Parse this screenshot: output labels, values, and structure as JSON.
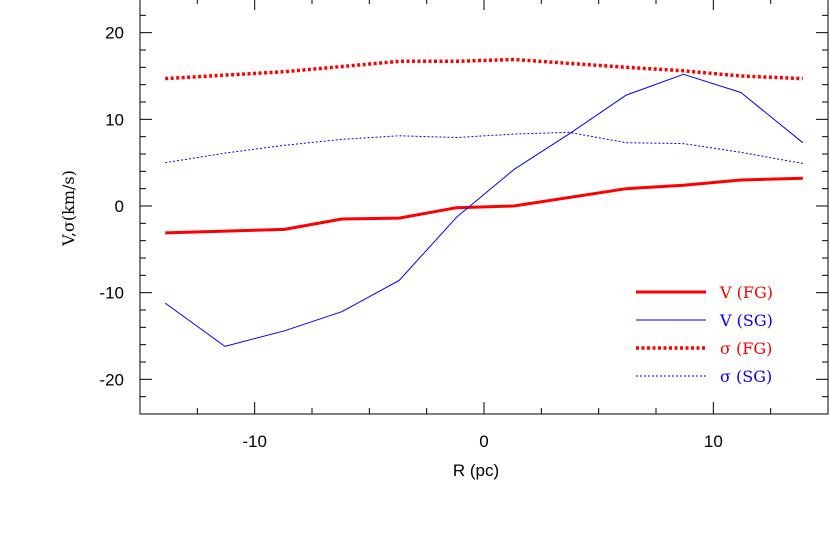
{
  "chart_data": {
    "type": "line",
    "xlabel": "R (pc)",
    "ylabel": "V,σ(km/s)",
    "xlim": [
      -15,
      15
    ],
    "ylim": [
      -24,
      24
    ],
    "x_ticks": [
      -10,
      0,
      10
    ],
    "y_ticks": [
      -20,
      -10,
      0,
      10,
      20
    ],
    "x_tick_labels": [
      "-10",
      "0",
      "10"
    ],
    "y_tick_labels": [
      "-20",
      "-10",
      "0",
      "10",
      "20"
    ],
    "grid": false,
    "legend_position": "bottom-right",
    "series": [
      {
        "name": "V (FG)",
        "color": "#ff0000",
        "style": "solid-thick",
        "x": [
          -13.9,
          -8.7,
          -6.2,
          -3.7,
          -1.2,
          1.3,
          6.2,
          8.7,
          11.2,
          13.9
        ],
        "y": [
          -3.1,
          -2.7,
          -1.5,
          -1.4,
          -0.2,
          0.0,
          2.0,
          2.4,
          3.0,
          3.2
        ]
      },
      {
        "name": "V (SG)",
        "color": "#0000ff",
        "style": "solid-thin",
        "x": [
          -13.9,
          -11.3,
          -8.7,
          -6.2,
          -3.7,
          -1.2,
          1.3,
          3.7,
          6.2,
          8.7,
          11.2,
          13.9
        ],
        "y": [
          -11.2,
          -16.2,
          -14.4,
          -12.2,
          -8.6,
          -1.3,
          4.2,
          8.3,
          12.8,
          15.2,
          13.1,
          7.3
        ]
      },
      {
        "name": "σ (FG)",
        "color": "#ff0000",
        "style": "dotted-thick",
        "x": [
          -13.9,
          -8.7,
          -6.2,
          -3.7,
          -1.2,
          1.3,
          6.2,
          8.7,
          11.2,
          13.9
        ],
        "y": [
          14.7,
          15.5,
          16.1,
          16.7,
          16.7,
          16.9,
          16.0,
          15.6,
          15.0,
          14.7
        ]
      },
      {
        "name": "σ (SG)",
        "color": "#0000ff",
        "style": "dotted-thin",
        "x": [
          -13.9,
          -11.3,
          -8.7,
          -6.2,
          -3.7,
          -1.2,
          1.3,
          3.7,
          6.2,
          8.7,
          11.2,
          13.9
        ],
        "y": [
          5.0,
          6.1,
          7.0,
          7.7,
          8.1,
          7.9,
          8.3,
          8.5,
          7.3,
          7.2,
          6.2,
          4.9
        ]
      }
    ]
  }
}
